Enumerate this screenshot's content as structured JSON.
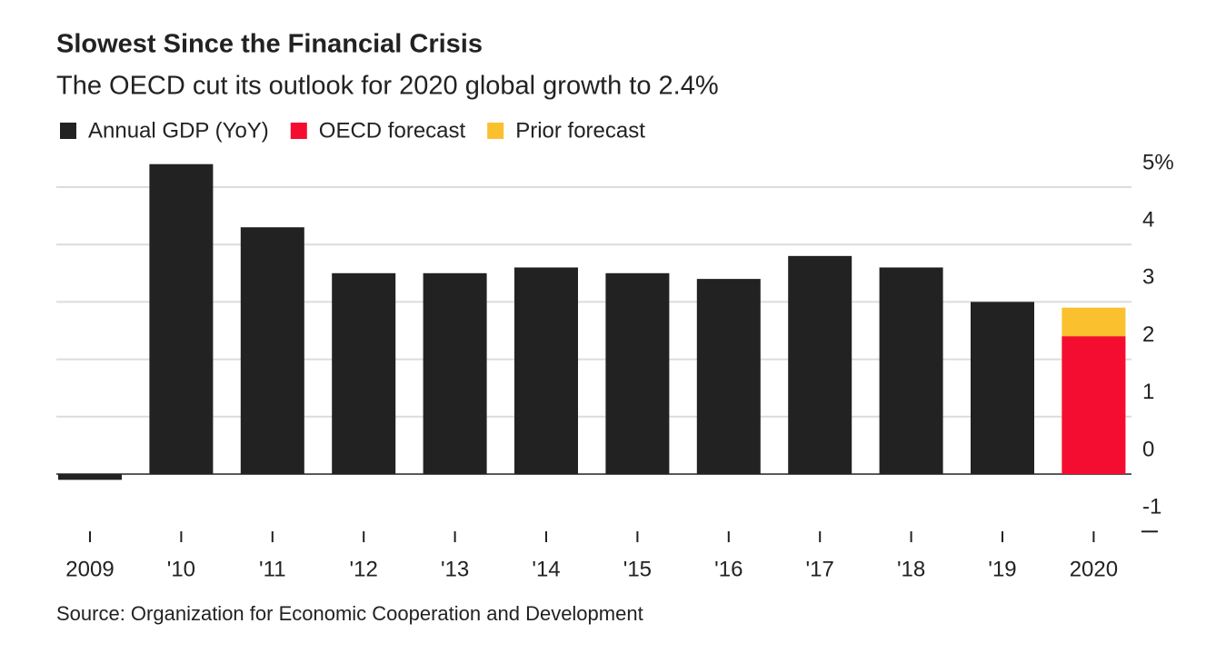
{
  "chart_data": {
    "type": "bar",
    "title": "Slowest Since the Financial Crisis",
    "subtitle": "The OECD cut its outlook for 2020 global growth to 2.4%",
    "source": "Source: Organization for Economic Cooperation and Development",
    "categories": [
      "2009",
      "'10",
      "'11",
      "'12",
      "'13",
      "'14",
      "'15",
      "'16",
      "'17",
      "'18",
      "'19",
      "2020"
    ],
    "series": [
      {
        "name": "Annual GDP (YoY)",
        "color": "#222222",
        "values": [
          -0.1,
          5.4,
          4.3,
          3.5,
          3.5,
          3.6,
          3.5,
          3.4,
          3.8,
          3.6,
          3.0,
          null
        ]
      },
      {
        "name": "OECD forecast",
        "color": "#f50d31",
        "values": [
          null,
          null,
          null,
          null,
          null,
          null,
          null,
          null,
          null,
          null,
          null,
          2.4
        ]
      },
      {
        "name": "Prior forecast",
        "color": "#fbc02d",
        "values": [
          null,
          null,
          null,
          null,
          null,
          null,
          null,
          null,
          null,
          null,
          null,
          2.9
        ]
      }
    ],
    "ylim": [
      -1,
      5.5
    ],
    "yticks": [
      -1,
      0,
      1,
      2,
      3,
      4,
      {
        "value": 5,
        "label": "5%"
      }
    ],
    "grid": true
  }
}
